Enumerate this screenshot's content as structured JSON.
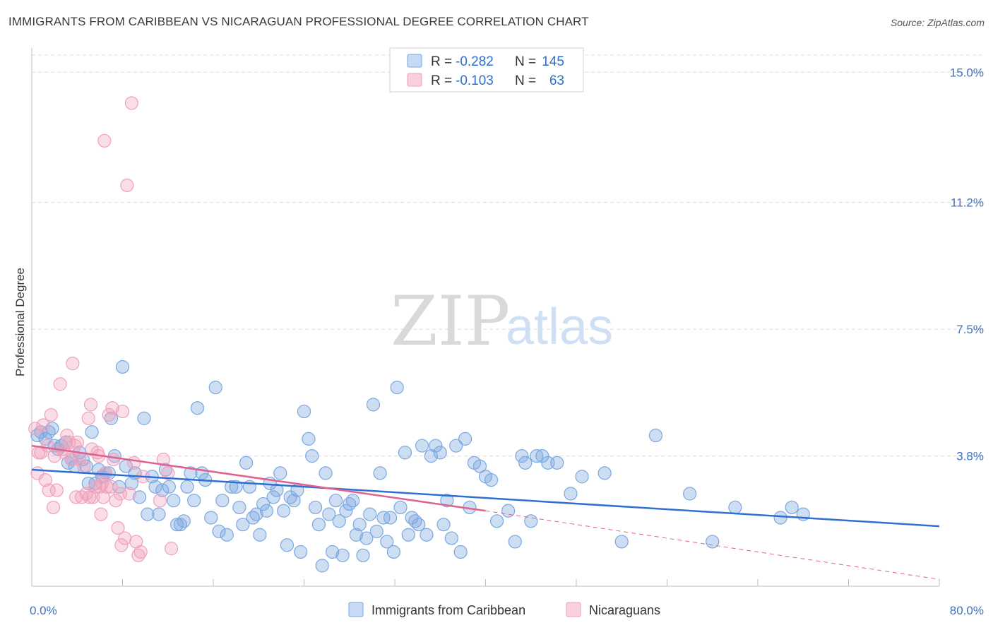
{
  "header": {
    "title": "IMMIGRANTS FROM CARIBBEAN VS NICARAGUAN PROFESSIONAL DEGREE CORRELATION CHART",
    "source": "Source: ZipAtlas.com"
  },
  "watermark": {
    "zip": "ZIP",
    "atlas": "atlas"
  },
  "legend": {
    "r_label": "R =",
    "n_label": "N =",
    "rows": [
      {
        "r": "-0.282",
        "n": "145"
      },
      {
        "r": "-0.103",
        "n": "63"
      }
    ]
  },
  "chart_data": {
    "type": "scatter",
    "xlabel": "",
    "ylabel": "Professional Degree",
    "xlim": [
      0,
      80
    ],
    "ylim": [
      0,
      15.5
    ],
    "x_tick_labels": [
      "0.0%",
      "80.0%"
    ],
    "y_ticks": [
      3.8,
      7.5,
      11.2,
      15.0
    ],
    "y_tick_labels": [
      "3.8%",
      "7.5%",
      "11.2%",
      "15.0%"
    ],
    "grid": true,
    "legend_position": "top-center",
    "colors": {
      "caribbean": "#7ba7e0",
      "nicaraguan": "#f0a0bb",
      "caribbean_line": "#2f6fd0",
      "nicaraguan_line": "#e0608f"
    },
    "series": [
      {
        "name": "Immigrants from Caribbean",
        "trend": {
          "x": [
            0,
            80
          ],
          "y": [
            3.4,
            1.75
          ]
        },
        "points": [
          [
            0.5,
            4.4
          ],
          [
            0.8,
            4.5
          ],
          [
            1.2,
            4.3
          ],
          [
            1.5,
            4.5
          ],
          [
            1.8,
            4.6
          ],
          [
            2.0,
            4.1
          ],
          [
            2.3,
            4.0
          ],
          [
            2.6,
            4.1
          ],
          [
            3.0,
            4.2
          ],
          [
            3.2,
            3.6
          ],
          [
            3.5,
            3.7
          ],
          [
            3.8,
            3.5
          ],
          [
            4.2,
            3.9
          ],
          [
            4.5,
            3.7
          ],
          [
            4.8,
            3.5
          ],
          [
            5.0,
            3.0
          ],
          [
            5.3,
            4.5
          ],
          [
            5.6,
            3.0
          ],
          [
            5.9,
            3.4
          ],
          [
            6.2,
            3.2
          ],
          [
            6.5,
            3.3
          ],
          [
            6.8,
            3.3
          ],
          [
            7.0,
            4.9
          ],
          [
            7.3,
            3.8
          ],
          [
            7.7,
            2.9
          ],
          [
            8.0,
            6.4
          ],
          [
            8.3,
            3.5
          ],
          [
            8.8,
            3.0
          ],
          [
            9.1,
            3.3
          ],
          [
            9.5,
            2.6
          ],
          [
            9.9,
            4.9
          ],
          [
            10.2,
            2.1
          ],
          [
            10.6,
            3.2
          ],
          [
            10.9,
            2.9
          ],
          [
            11.2,
            2.1
          ],
          [
            11.5,
            2.8
          ],
          [
            11.8,
            3.4
          ],
          [
            12.1,
            2.9
          ],
          [
            12.5,
            2.5
          ],
          [
            12.8,
            1.8
          ],
          [
            13.1,
            1.8
          ],
          [
            13.4,
            1.9
          ],
          [
            13.7,
            2.9
          ],
          [
            14.0,
            3.3
          ],
          [
            14.3,
            2.5
          ],
          [
            14.6,
            5.2
          ],
          [
            15.0,
            3.3
          ],
          [
            15.3,
            3.1
          ],
          [
            15.8,
            2.0
          ],
          [
            16.2,
            5.8
          ],
          [
            16.5,
            1.6
          ],
          [
            16.8,
            2.5
          ],
          [
            17.2,
            1.5
          ],
          [
            17.6,
            2.9
          ],
          [
            18.0,
            2.9
          ],
          [
            18.3,
            2.3
          ],
          [
            18.6,
            1.8
          ],
          [
            18.9,
            3.6
          ],
          [
            19.2,
            2.9
          ],
          [
            19.5,
            2.0
          ],
          [
            19.8,
            2.1
          ],
          [
            20.1,
            1.5
          ],
          [
            20.4,
            2.4
          ],
          [
            20.7,
            2.2
          ],
          [
            21.0,
            3.0
          ],
          [
            21.3,
            2.6
          ],
          [
            21.6,
            2.8
          ],
          [
            21.9,
            3.3
          ],
          [
            22.2,
            2.2
          ],
          [
            22.5,
            1.2
          ],
          [
            22.8,
            2.6
          ],
          [
            23.1,
            2.5
          ],
          [
            23.4,
            2.8
          ],
          [
            23.7,
            1.0
          ],
          [
            24.0,
            5.1
          ],
          [
            24.4,
            4.3
          ],
          [
            24.7,
            3.8
          ],
          [
            25.0,
            2.3
          ],
          [
            25.3,
            1.8
          ],
          [
            25.6,
            0.6
          ],
          [
            25.9,
            3.3
          ],
          [
            26.2,
            2.1
          ],
          [
            26.5,
            1.0
          ],
          [
            26.8,
            2.5
          ],
          [
            27.1,
            1.9
          ],
          [
            27.4,
            0.9
          ],
          [
            27.7,
            2.2
          ],
          [
            28.0,
            2.4
          ],
          [
            28.3,
            2.5
          ],
          [
            28.6,
            1.5
          ],
          [
            28.9,
            1.8
          ],
          [
            29.2,
            0.9
          ],
          [
            29.5,
            1.4
          ],
          [
            29.8,
            2.1
          ],
          [
            30.1,
            5.3
          ],
          [
            30.4,
            1.6
          ],
          [
            30.7,
            3.3
          ],
          [
            31.0,
            2.0
          ],
          [
            31.3,
            1.3
          ],
          [
            31.6,
            2.0
          ],
          [
            31.9,
            1.0
          ],
          [
            32.2,
            5.8
          ],
          [
            32.5,
            2.3
          ],
          [
            32.9,
            3.9
          ],
          [
            33.2,
            1.5
          ],
          [
            33.5,
            2.0
          ],
          [
            33.8,
            1.9
          ],
          [
            34.1,
            1.8
          ],
          [
            34.4,
            4.1
          ],
          [
            34.8,
            1.5
          ],
          [
            35.2,
            3.8
          ],
          [
            35.6,
            4.1
          ],
          [
            36.0,
            3.9
          ],
          [
            36.3,
            1.8
          ],
          [
            36.6,
            2.5
          ],
          [
            37.0,
            1.4
          ],
          [
            37.4,
            4.1
          ],
          [
            37.8,
            1.0
          ],
          [
            38.2,
            4.3
          ],
          [
            38.6,
            2.3
          ],
          [
            39.0,
            3.6
          ],
          [
            39.5,
            3.5
          ],
          [
            40.0,
            3.2
          ],
          [
            40.5,
            3.1
          ],
          [
            41.0,
            1.9
          ],
          [
            42.0,
            2.2
          ],
          [
            42.6,
            1.3
          ],
          [
            43.2,
            3.8
          ],
          [
            43.5,
            3.6
          ],
          [
            44.0,
            1.9
          ],
          [
            44.5,
            3.8
          ],
          [
            45.0,
            3.8
          ],
          [
            45.5,
            3.6
          ],
          [
            46.3,
            3.6
          ],
          [
            47.5,
            2.7
          ],
          [
            48.5,
            3.2
          ],
          [
            50.5,
            3.3
          ],
          [
            55.0,
            4.4
          ],
          [
            52.0,
            1.3
          ],
          [
            58.0,
            2.7
          ],
          [
            60.0,
            1.3
          ],
          [
            62.0,
            2.3
          ],
          [
            66.0,
            2.0
          ],
          [
            67.0,
            2.3
          ],
          [
            68.0,
            2.1
          ]
        ]
      },
      {
        "name": "Nicaraguans",
        "trend": {
          "x": [
            0,
            40
          ],
          "y": [
            4.1,
            2.2
          ],
          "dashed_extension": {
            "x": [
              40,
              80
            ],
            "y": [
              2.2,
              0.2
            ]
          }
        },
        "points": [
          [
            0.3,
            4.6
          ],
          [
            0.5,
            3.3
          ],
          [
            0.6,
            3.9
          ],
          [
            0.8,
            3.9
          ],
          [
            1.0,
            4.7
          ],
          [
            1.2,
            3.1
          ],
          [
            1.4,
            4.1
          ],
          [
            1.5,
            2.8
          ],
          [
            1.7,
            5.0
          ],
          [
            1.9,
            2.3
          ],
          [
            2.0,
            3.8
          ],
          [
            2.2,
            2.8
          ],
          [
            2.5,
            5.9
          ],
          [
            2.7,
            4.0
          ],
          [
            2.9,
            3.9
          ],
          [
            3.1,
            4.4
          ],
          [
            3.3,
            4.2
          ],
          [
            3.5,
            3.7
          ],
          [
            3.6,
            6.5
          ],
          [
            3.8,
            4.1
          ],
          [
            3.9,
            2.6
          ],
          [
            4.0,
            4.2
          ],
          [
            4.2,
            3.7
          ],
          [
            4.4,
            2.6
          ],
          [
            4.6,
            3.5
          ],
          [
            4.8,
            2.7
          ],
          [
            5.0,
            4.9
          ],
          [
            5.1,
            2.6
          ],
          [
            5.2,
            5.3
          ],
          [
            5.3,
            4.0
          ],
          [
            5.4,
            2.6
          ],
          [
            5.6,
            2.9
          ],
          [
            5.8,
            3.9
          ],
          [
            5.9,
            3.8
          ],
          [
            6.0,
            2.9
          ],
          [
            6.1,
            2.1
          ],
          [
            6.2,
            3.0
          ],
          [
            6.3,
            2.6
          ],
          [
            6.4,
            13.0
          ],
          [
            6.5,
            3.3
          ],
          [
            6.6,
            2.9
          ],
          [
            6.8,
            5.0
          ],
          [
            7.0,
            2.9
          ],
          [
            7.1,
            5.2
          ],
          [
            7.2,
            3.7
          ],
          [
            7.4,
            2.5
          ],
          [
            7.6,
            1.7
          ],
          [
            7.8,
            2.7
          ],
          [
            7.9,
            1.2
          ],
          [
            8.0,
            5.1
          ],
          [
            8.2,
            1.4
          ],
          [
            8.4,
            11.7
          ],
          [
            8.6,
            2.7
          ],
          [
            8.8,
            14.1
          ],
          [
            9.0,
            3.6
          ],
          [
            9.2,
            1.3
          ],
          [
            9.4,
            0.9
          ],
          [
            9.6,
            1.0
          ],
          [
            9.8,
            3.2
          ],
          [
            11.3,
            2.5
          ],
          [
            11.6,
            3.7
          ],
          [
            12.0,
            3.3
          ],
          [
            12.3,
            1.1
          ]
        ]
      }
    ]
  },
  "bottom_legend": {
    "items": [
      {
        "label": "Immigrants from Caribbean"
      },
      {
        "label": "Nicaraguans"
      }
    ]
  }
}
